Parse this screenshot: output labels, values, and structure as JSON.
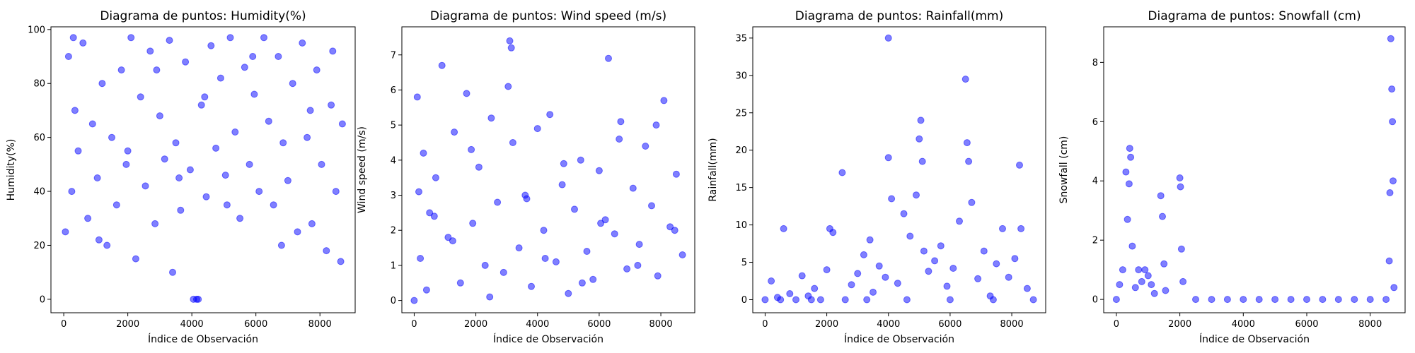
{
  "figure": {
    "point_color": "#0000ff"
  },
  "chart_data": [
    {
      "type": "scatter",
      "title": "Diagrama de puntos: Humidity(%)",
      "xlabel": "Índice de Observación",
      "ylabel": "Humidity(%)",
      "xlim": [
        -400,
        9100
      ],
      "ylim": [
        -5,
        101
      ],
      "xticks": [
        0,
        2000,
        4000,
        6000,
        8000
      ],
      "yticks": [
        0,
        20,
        40,
        60,
        80,
        100
      ],
      "x": [
        50,
        150,
        250,
        350,
        450,
        600,
        750,
        900,
        1050,
        1200,
        1350,
        1500,
        1650,
        1800,
        1950,
        2100,
        2250,
        2400,
        2550,
        2700,
        2850,
        3000,
        3150,
        3300,
        3400,
        3500,
        3650,
        3800,
        3950,
        4050,
        4150,
        4200,
        4300,
        4450,
        4600,
        4750,
        4900,
        5050,
        5200,
        5350,
        5500,
        5650,
        5800,
        5950,
        6100,
        6250,
        6400,
        6550,
        6700,
        6850,
        7000,
        7150,
        7300,
        7450,
        7600,
        7750,
        7900,
        8050,
        8200,
        8350,
        8500,
        8650,
        8700,
        300,
        1100,
        2000,
        2900,
        3600,
        4400,
        5100,
        5900,
        6800,
        7700,
        8400
      ],
      "y": [
        25,
        90,
        40,
        70,
        55,
        95,
        30,
        65,
        45,
        80,
        20,
        60,
        35,
        85,
        50,
        97,
        15,
        75,
        42,
        92,
        28,
        68,
        52,
        96,
        10,
        58,
        33,
        88,
        48,
        0,
        0,
        0,
        72,
        38,
        94,
        56,
        82,
        46,
        97,
        62,
        30,
        86,
        50,
        76,
        40,
        97,
        66,
        35,
        90,
        58,
        44,
        80,
        25,
        95,
        60,
        28,
        85,
        50,
        18,
        72,
        40,
        14,
        65,
        97,
        22,
        55,
        85,
        45,
        75,
        35,
        90,
        20,
        70,
        92
      ]
    },
    {
      "type": "scatter",
      "title": "Diagrama de puntos: Wind speed (m/s)",
      "xlabel": "Índice de Observación",
      "ylabel": "Wind speed (m/s)",
      "xlim": [
        -400,
        9100
      ],
      "ylim": [
        -0.35,
        7.8
      ],
      "xticks": [
        0,
        2000,
        4000,
        6000,
        8000
      ],
      "yticks": [
        0,
        1,
        2,
        3,
        4,
        5,
        6,
        7
      ],
      "x": [
        0,
        100,
        200,
        300,
        400,
        500,
        700,
        900,
        1100,
        1300,
        1500,
        1700,
        1900,
        2100,
        2300,
        2500,
        2700,
        2900,
        3100,
        3150,
        3200,
        3400,
        3600,
        3800,
        4000,
        4200,
        4400,
        4600,
        4800,
        5000,
        5200,
        5400,
        5600,
        5800,
        6000,
        6200,
        6300,
        6500,
        6700,
        6900,
        7100,
        7300,
        7500,
        7700,
        7900,
        8100,
        8300,
        8500,
        8700,
        150,
        650,
        1250,
        1850,
        2450,
        3050,
        3650,
        4250,
        4850,
        5450,
        6050,
        6650,
        7250,
        7850,
        8450
      ],
      "y": [
        0,
        5.8,
        1.2,
        4.2,
        0.3,
        2.5,
        3.5,
        6.7,
        1.8,
        4.8,
        0.5,
        5.9,
        2.2,
        3.8,
        1.0,
        5.2,
        2.8,
        0.8,
        7.4,
        7.2,
        4.5,
        1.5,
        3.0,
        0.4,
        4.9,
        2.0,
        5.3,
        1.1,
        3.3,
        0.2,
        2.6,
        4.0,
        1.4,
        0.6,
        3.7,
        2.3,
        6.9,
        1.9,
        5.1,
        0.9,
        3.2,
        1.6,
        4.4,
        2.7,
        0.7,
        5.7,
        2.1,
        3.6,
        1.3,
        3.1,
        2.4,
        1.7,
        4.3,
        0.1,
        6.1,
        2.9,
        1.2,
        3.9,
        0.5,
        2.2,
        4.6,
        1.0,
        5.0,
        2.0
      ]
    },
    {
      "type": "scatter",
      "title": "Diagrama de puntos: Rainfall(mm)",
      "xlabel": "Índice de Observación",
      "ylabel": "Rainfall(mm)",
      "xlim": [
        -400,
        9100
      ],
      "ylim": [
        -1.75,
        36.5
      ],
      "xticks": [
        0,
        2000,
        4000,
        6000,
        8000
      ],
      "yticks": [
        0,
        5,
        10,
        15,
        20,
        25,
        30,
        35
      ],
      "x": [
        0,
        200,
        400,
        600,
        800,
        1000,
        1200,
        1400,
        1600,
        1800,
        2000,
        2100,
        2200,
        2500,
        2800,
        3000,
        3200,
        3400,
        3500,
        3700,
        3900,
        4000,
        4000,
        4100,
        4300,
        4500,
        4700,
        4900,
        5000,
        5050,
        5100,
        5150,
        5300,
        5500,
        5700,
        5900,
        6100,
        6300,
        6500,
        6550,
        6600,
        6700,
        6900,
        7100,
        7300,
        7500,
        7700,
        7900,
        8100,
        8250,
        8300,
        8500,
        8700,
        500,
        1500,
        2600,
        3300,
        4600,
        6000,
        7400
      ],
      "y": [
        0,
        2.5,
        0.3,
        9.5,
        0.8,
        0,
        3.2,
        0.5,
        1.5,
        0,
        4.0,
        9.5,
        9.0,
        17,
        2.0,
        3.5,
        6.0,
        8.0,
        1.0,
        4.5,
        3.0,
        35,
        19,
        13.5,
        2.2,
        11.5,
        8.5,
        14.0,
        21.5,
        24.0,
        18.5,
        6.5,
        3.8,
        5.2,
        7.2,
        1.8,
        4.2,
        10.5,
        29.5,
        21.0,
        18.5,
        13.0,
        2.8,
        6.5,
        0.5,
        4.8,
        9.5,
        3.0,
        5.5,
        18.0,
        9.5,
        1.5,
        0,
        0,
        0,
        0,
        0,
        0,
        0,
        0
      ]
    },
    {
      "type": "scatter",
      "title": "Diagrama de puntos: Snowfall (cm)",
      "xlabel": "Índice de Observación",
      "ylabel": "Snowfall (cm)",
      "xlim": [
        -400,
        9100
      ],
      "ylim": [
        -0.45,
        9.2
      ],
      "xticks": [
        0,
        2000,
        4000,
        6000,
        8000
      ],
      "yticks": [
        0,
        2,
        4,
        6,
        8
      ],
      "x": [
        0,
        100,
        200,
        300,
        350,
        400,
        420,
        450,
        500,
        600,
        700,
        800,
        900,
        1000,
        1100,
        1200,
        1400,
        1450,
        1500,
        1550,
        2000,
        2020,
        2050,
        2100,
        2500,
        3000,
        3500,
        4000,
        4500,
        5000,
        5500,
        6000,
        6500,
        7000,
        7500,
        8000,
        8500,
        8600,
        8620,
        8650,
        8680,
        8700,
        8720,
        8750
      ],
      "y": [
        0,
        0.5,
        1.0,
        4.3,
        2.7,
        3.9,
        5.1,
        4.8,
        1.8,
        0.4,
        1.0,
        0.6,
        1.0,
        0.8,
        0.5,
        0.2,
        3.5,
        2.8,
        1.2,
        0.3,
        4.1,
        3.8,
        1.7,
        0.6,
        0,
        0,
        0,
        0,
        0,
        0,
        0,
        0,
        0,
        0,
        0,
        0,
        0,
        1.3,
        3.6,
        8.8,
        7.1,
        6.0,
        4.0,
        0.4
      ]
    }
  ]
}
